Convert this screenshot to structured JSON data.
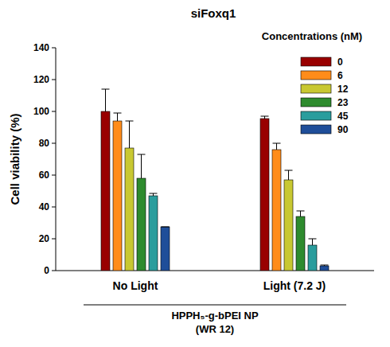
{
  "chart_data": {
    "type": "bar",
    "title": "siFoxq1",
    "y_label": "Cell viability (%)",
    "legend_title": "Concentrations (nM)",
    "annotations": [
      "HPPH₅-g-bPEI NP",
      "(WR 12)"
    ],
    "categories": [
      "No Light",
      "Light (7.2 J)"
    ],
    "series": [
      {
        "name": "0",
        "color": "#990000",
        "values": [
          100,
          95.5
        ],
        "errors": [
          14,
          1.5
        ]
      },
      {
        "name": "6",
        "color": "#ff8c1a",
        "values": [
          94,
          76
        ],
        "errors": [
          5,
          4
        ]
      },
      {
        "name": "12",
        "color": "#c8c832",
        "values": [
          77,
          57
        ],
        "errors": [
          17,
          6
        ]
      },
      {
        "name": "23",
        "color": "#2e8b2e",
        "values": [
          58,
          34
        ],
        "errors": [
          15,
          3.5
        ]
      },
      {
        "name": "45",
        "color": "#2a9d9d",
        "values": [
          47,
          16
        ],
        "errors": [
          1.5,
          4
        ]
      },
      {
        "name": "90",
        "color": "#1f4e99",
        "values": [
          27.5,
          3
        ],
        "errors": [
          0,
          0.5
        ]
      }
    ],
    "ylim": [
      0,
      140
    ],
    "yticks": [
      0,
      20,
      40,
      60,
      80,
      100,
      120,
      140
    ],
    "grid": false,
    "legend": "upper right"
  }
}
